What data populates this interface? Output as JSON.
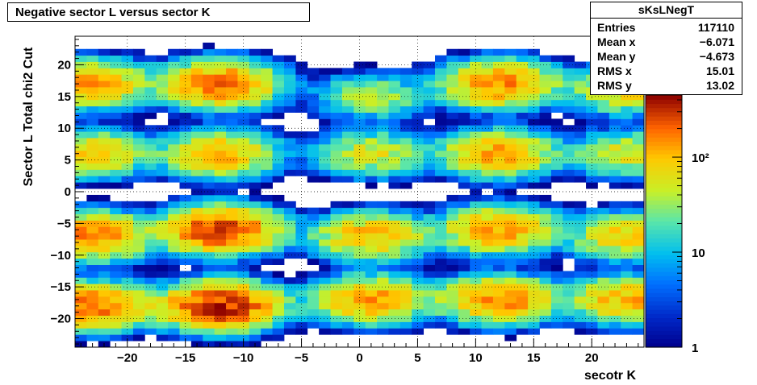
{
  "title": "Negative sector L versus sector K",
  "stats": {
    "name": "sKsLNegT",
    "rows": [
      {
        "label": "Entries",
        "value": "117110"
      },
      {
        "label": "Mean x",
        "value": "−6.071"
      },
      {
        "label": "Mean y",
        "value": "−4.673"
      },
      {
        "label": "RMS x",
        "value": "15.01"
      },
      {
        "label": "RMS y",
        "value": "13.02"
      }
    ]
  },
  "chart_data": {
    "type": "heatmap",
    "title": "Negative sector L versus sector K",
    "xlabel": "secotr K",
    "ylabel": "Sector L  Total chi2 Cut",
    "xlim": [
      -24.5,
      24.5
    ],
    "ylim": [
      -24.5,
      24.5
    ],
    "x_ticks": [
      -20,
      -15,
      -10,
      -5,
      0,
      5,
      10,
      15,
      20
    ],
    "x_tick_labels": [
      "−20",
      "−15",
      "−10",
      "−5",
      "0",
      "5",
      "10",
      "15",
      "20"
    ],
    "y_ticks": [
      -20,
      -15,
      -10,
      -5,
      0,
      5,
      10,
      15,
      20
    ],
    "y_tick_labels": [
      "−20",
      "−15",
      "−10",
      "−5",
      "0",
      "5",
      "10",
      "15",
      "20"
    ],
    "grid": true,
    "colorbar": {
      "scale": "log",
      "range": [
        1,
        450
      ],
      "tick_labels": [
        "1",
        "10",
        "10²"
      ],
      "tick_values": [
        1,
        10,
        100
      ]
    },
    "hotspots": [
      {
        "x": -23,
        "y": 17,
        "peak": 140
      },
      {
        "x": -12,
        "y": 17,
        "peak": 200
      },
      {
        "x": 1,
        "y": 15,
        "peak": 40
      },
      {
        "x": 12,
        "y": 17,
        "peak": 170
      },
      {
        "x": 23,
        "y": 16,
        "peak": 80
      },
      {
        "x": -23,
        "y": 6,
        "peak": 90
      },
      {
        "x": -12,
        "y": 6,
        "peak": 120
      },
      {
        "x": 1,
        "y": 6,
        "peak": 60
      },
      {
        "x": 12,
        "y": 6,
        "peak": 130
      },
      {
        "x": 23,
        "y": 6,
        "peak": 60
      },
      {
        "x": -23,
        "y": -7,
        "peak": 180
      },
      {
        "x": -12,
        "y": -6,
        "peak": 280
      },
      {
        "x": 1,
        "y": -7,
        "peak": 120
      },
      {
        "x": 12,
        "y": -6,
        "peak": 150
      },
      {
        "x": 23,
        "y": -7,
        "peak": 90
      },
      {
        "x": -23,
        "y": -18,
        "peak": 200
      },
      {
        "x": -12,
        "y": -18,
        "peak": 350
      },
      {
        "x": 1,
        "y": -17,
        "peak": 150
      },
      {
        "x": 12,
        "y": -17,
        "peak": 170
      },
      {
        "x": 23,
        "y": -17,
        "peak": 120
      }
    ]
  }
}
